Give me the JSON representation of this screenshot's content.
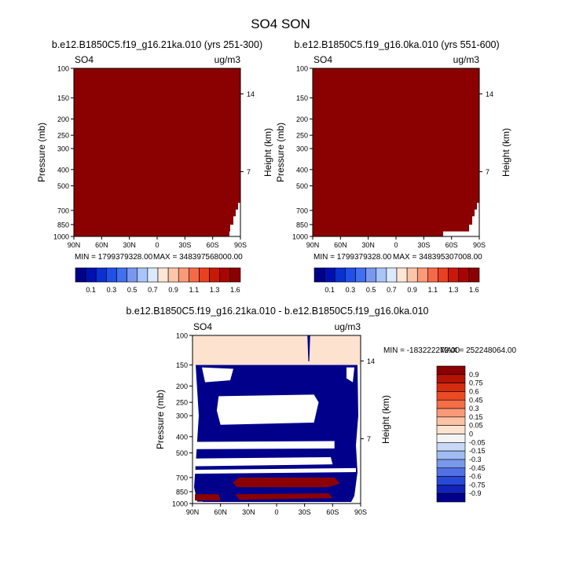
{
  "title": "SO4 SON",
  "colors": {
    "fill_red": "#8b0000",
    "fill_navy": "#00008b",
    "fill_white": "#ffffff",
    "fill_peach": "#fde2cf",
    "frame": "#000000"
  },
  "chart_data": [
    {
      "id": "panel-left",
      "type": "heatmap",
      "title": "b.e12.B1850C5.f19_g16.21ka.010 (yrs 251-300)",
      "left_label": "SO4",
      "units": "ug/m3",
      "xlabel": "",
      "ylabel": "Pressure (mb)",
      "ylabel_right": "Height (km)",
      "x_ticks": [
        "90N",
        "60N",
        "30N",
        "0",
        "30S",
        "60S",
        "90S"
      ],
      "y_ticks": [
        "100",
        "150",
        "200",
        "250",
        "300",
        "400",
        "500",
        "700",
        "850",
        "1000"
      ],
      "height_ticks": [
        "14",
        "7"
      ],
      "height_tick_pressures": [
        142,
        412
      ],
      "ylim": [
        1000,
        100
      ],
      "xlim": [
        90,
        -90
      ],
      "min_text": "MIN = 1799379328.00",
      "max_text": "MAX = 348397568000.00",
      "field_description": "values exceed top colorbar level nearly everywhere except lowest levels near 90S",
      "colorbar": {
        "orientation": "horizontal",
        "labels": [
          "0.1",
          "0.3",
          "0.5",
          "0.7",
          "0.9",
          "1.1",
          "1.3",
          "1.6"
        ],
        "colors": [
          "#00008b",
          "#0010b0",
          "#0a30d0",
          "#2050e8",
          "#4070f0",
          "#7898f0",
          "#a8c4f8",
          "#dce8fc",
          "#fde6d4",
          "#fcc4a8",
          "#fa9a78",
          "#f46a48",
          "#e84020",
          "#c81808",
          "#a80404",
          "#8b0000"
        ]
      }
    },
    {
      "id": "panel-right",
      "type": "heatmap",
      "title": "b.e12.B1850C5.f19_g16.0ka.010 (yrs 551-600)",
      "left_label": "SO4",
      "units": "ug/m3",
      "xlabel": "",
      "ylabel": "Pressure (mb)",
      "ylabel_right": "Height (km)",
      "x_ticks": [
        "90N",
        "60N",
        "30N",
        "0",
        "30S",
        "60S",
        "90S"
      ],
      "y_ticks": [
        "100",
        "150",
        "200",
        "250",
        "300",
        "400",
        "500",
        "700",
        "850",
        "1000"
      ],
      "height_ticks": [
        "14",
        "7"
      ],
      "height_tick_pressures": [
        142,
        412
      ],
      "ylim": [
        1000,
        100
      ],
      "xlim": [
        90,
        -90
      ],
      "min_text": "MIN = 1799379328.00",
      "max_text": "MAX = 348395307008.00",
      "colorbar": {
        "orientation": "horizontal",
        "labels": [
          "0.1",
          "0.3",
          "0.5",
          "0.7",
          "0.9",
          "1.1",
          "1.3",
          "1.6"
        ],
        "colors": [
          "#00008b",
          "#0010b0",
          "#0a30d0",
          "#2050e8",
          "#4070f0",
          "#7898f0",
          "#a8c4f8",
          "#dce8fc",
          "#fde6d4",
          "#fcc4a8",
          "#fa9a78",
          "#f46a48",
          "#e84020",
          "#c81808",
          "#a80404",
          "#8b0000"
        ]
      }
    },
    {
      "id": "panel-diff",
      "type": "heatmap",
      "title": "b.e12.B1850C5.f19_g16.21ka.010 - b.e12.B1850C5.f19_g16.0ka.010",
      "left_label": "SO4",
      "units": "ug/m3",
      "xlabel": "",
      "ylabel": "Pressure (mb)",
      "ylabel_right": "Height (km)",
      "x_ticks": [
        "90N",
        "60N",
        "30N",
        "0",
        "30S",
        "60S",
        "90S"
      ],
      "y_ticks": [
        "100",
        "150",
        "200",
        "250",
        "300",
        "400",
        "500",
        "700",
        "850",
        "1000"
      ],
      "height_ticks": [
        "14",
        "7"
      ],
      "height_tick_pressures": [
        142,
        412
      ],
      "ylim": [
        1000,
        100
      ],
      "xlim": [
        90,
        -90
      ],
      "min_text": "MIN = -183222272.00",
      "max_text": "MAX = 252248064.00",
      "colorbar": {
        "orientation": "vertical",
        "labels": [
          "0.9",
          "0.75",
          "0.6",
          "0.45",
          "0.3",
          "0.15",
          "0.05",
          "0",
          "-0.05",
          "-0.15",
          "-0.3",
          "-0.45",
          "-0.6",
          "-0.75",
          "-0.9"
        ],
        "colors": [
          "#8b0000",
          "#b41404",
          "#d42c10",
          "#ea4a24",
          "#f46e48",
          "#f89a78",
          "#fbc2a6",
          "#fde2cf",
          "#f4f4f4",
          "#c8d8f6",
          "#a0bcf2",
          "#7898ec",
          "#5070e4",
          "#2848d8",
          "#1024b8",
          "#00008b"
        ]
      }
    }
  ]
}
